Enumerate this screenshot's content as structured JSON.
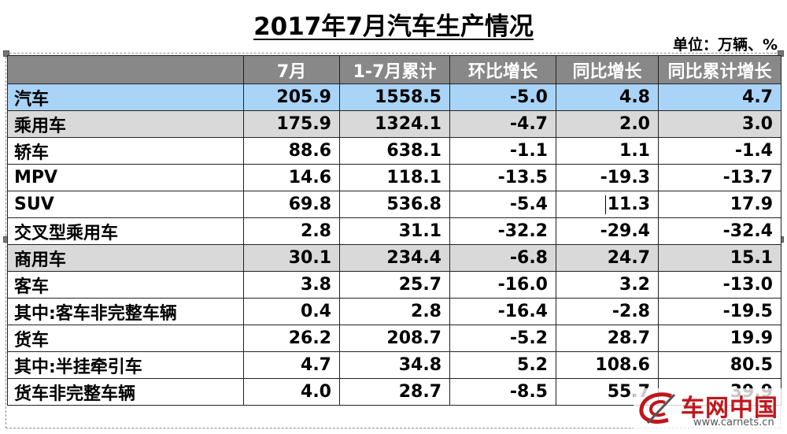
{
  "title": "2017年7月汽车生产情况",
  "unit": "单位：万辆、%",
  "columns": [
    "",
    "7月",
    "1-7月累计",
    "环比增长",
    "同比增长",
    "同比累计增长"
  ],
  "rows": [
    {
      "name": "汽车",
      "level": "total",
      "indent": 0,
      "cells": [
        "205.9",
        "1558.5",
        "-5.0",
        "4.8",
        "4.7"
      ]
    },
    {
      "name": "乘用车",
      "level": "cat",
      "indent": 1,
      "cells": [
        "175.9",
        "1324.1",
        "-4.7",
        "2.0",
        "3.0"
      ]
    },
    {
      "name": "轿车",
      "level": "sub",
      "indent": 2,
      "cells": [
        "88.6",
        "638.1",
        "-1.1",
        "1.1",
        "-1.4"
      ]
    },
    {
      "name": "MPV",
      "level": "sub",
      "indent": 2,
      "cells": [
        "14.6",
        "118.1",
        "-13.5",
        "-19.3",
        "-13.7"
      ]
    },
    {
      "name": "SUV",
      "level": "sub",
      "indent": 2,
      "cells": [
        "69.8",
        "536.8",
        "-5.4",
        "11.3",
        "17.9"
      ]
    },
    {
      "name": "交叉型乘用车",
      "level": "sub",
      "indent": 2,
      "cells": [
        "2.8",
        "31.1",
        "-32.2",
        "-29.4",
        "-32.4"
      ]
    },
    {
      "name": "商用车",
      "level": "cat",
      "indent": 1,
      "cells": [
        "30.1",
        "234.4",
        "-6.8",
        "24.7",
        "15.1"
      ]
    },
    {
      "name": "客车",
      "level": "sub",
      "indent": 2,
      "cells": [
        "3.8",
        "25.7",
        "-16.0",
        "3.2",
        "-13.0"
      ]
    },
    {
      "name": "其中:客车非完整车辆",
      "level": "sub",
      "indent": 3,
      "cells": [
        "0.4",
        "2.8",
        "-16.4",
        "-2.8",
        "-19.5"
      ]
    },
    {
      "name": "货车",
      "level": "sub",
      "indent": 2,
      "cells": [
        "26.2",
        "208.7",
        "-5.2",
        "28.7",
        "19.9"
      ]
    },
    {
      "name": "其中:半挂牵引车",
      "level": "sub",
      "indent": 3,
      "cells": [
        "4.7",
        "34.8",
        "5.2",
        "108.6",
        "80.5"
      ]
    },
    {
      "name": "货车非完整车辆",
      "level": "sub",
      "indent": 3,
      "cells": [
        "4.0",
        "28.7",
        "-8.5",
        "55.7",
        "39.9"
      ]
    }
  ],
  "watermark": {
    "name": "车网中国",
    "url": "www.carnets.cn",
    "color": "#c0171c"
  },
  "colors": {
    "header_bg": "#888888",
    "total_row_bg": "#a9d4f7",
    "category_row_bg": "#d9d9d9"
  }
}
